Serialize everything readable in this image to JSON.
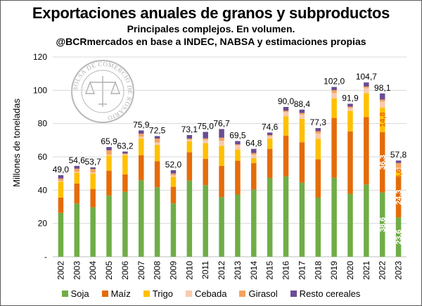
{
  "chart_data": {
    "type": "bar",
    "stacked": true,
    "title": "Exportaciones anuales de granos y subproductos",
    "subtitle": "Principales complejos. En volumen.",
    "subtitle2": "@BCRmercados en base a INDEC, NABSA y estimaciones propias",
    "ylabel": "Millones de toneladas",
    "ylim": [
      0,
      120
    ],
    "yticks": [
      "-",
      "20",
      "40",
      "60",
      "80",
      "100",
      "120"
    ],
    "grid": true,
    "legend_position": "bottom",
    "categories": [
      "2002",
      "2003",
      "2004",
      "2005",
      "2006",
      "2007",
      "2008",
      "2009",
      "2010",
      "2011",
      "2012",
      "2013",
      "2014",
      "2015",
      "2016",
      "2017",
      "2018",
      "2019",
      "2020",
      "2021",
      "2022",
      "2023"
    ],
    "totals": [
      "49,0",
      "54,6",
      "53,7",
      "65,9",
      "63,2",
      "75,9",
      "72,5",
      "52,0",
      "73,1",
      "75,0",
      "76,7",
      "69,5",
      "64,8",
      "74,6",
      "90,0",
      "88,4",
      "77,3",
      "102,0",
      "91,9",
      "104,7",
      "98,1",
      "57,8"
    ],
    "total_values": [
      49.0,
      54.6,
      53.7,
      65.9,
      63.2,
      75.9,
      72.5,
      52.0,
      73.1,
      75.0,
      76.7,
      69.5,
      64.8,
      74.6,
      90.0,
      88.4,
      77.3,
      102.0,
      91.9,
      104.7,
      98.1,
      57.8
    ],
    "series": [
      {
        "name": "Soja",
        "color": "#70ad47",
        "values": [
          26.3,
          32.0,
          29.7,
          36.7,
          39.0,
          46.0,
          41.7,
          32.0,
          45.8,
          43.0,
          35.8,
          37.4,
          40.3,
          47.3,
          48.2,
          44.5,
          35.5,
          47.4,
          37.8,
          43.4,
          38.6,
          23.6
        ]
      },
      {
        "name": "Maíz",
        "color": "#e46c0a",
        "values": [
          9.2,
          12.0,
          11.0,
          15.0,
          10.5,
          15.0,
          15.7,
          10.0,
          17.0,
          15.8,
          18.8,
          20.3,
          16.0,
          17.5,
          24.6,
          24.3,
          23.0,
          36.0,
          37.5,
          40.5,
          36.3,
          24.3
        ]
      },
      {
        "name": "Trigo",
        "color": "#ffc000",
        "values": [
          9.6,
          6.5,
          9.3,
          9.0,
          11.5,
          10.0,
          9.8,
          6.0,
          6.6,
          9.4,
          12.0,
          6.7,
          3.0,
          6.2,
          11.5,
          14.0,
          12.3,
          11.8,
          12.3,
          14.3,
          14.8,
          3.6
        ]
      },
      {
        "name": "Cebada",
        "color": "#f8cbad",
        "values": [
          0.5,
          0.6,
          0.6,
          0.6,
          0.5,
          1.1,
          1.4,
          0.9,
          0.9,
          2.0,
          3.0,
          2.6,
          2.0,
          1.4,
          2.6,
          2.6,
          3.2,
          3.2,
          1.8,
          3.1,
          3.5,
          2.0
        ]
      },
      {
        "name": "Girasol",
        "color": "#f4a460",
        "values": [
          1.4,
          1.8,
          2.1,
          2.7,
          0.5,
          1.8,
          2.4,
          1.1,
          0.7,
          0.9,
          1.9,
          0.5,
          1.0,
          0.7,
          0.8,
          1.0,
          1.4,
          1.7,
          0.8,
          0.9,
          1.2,
          2.8
        ]
      },
      {
        "name": "Resto cereales",
        "color": "#6a4c93",
        "values": [
          2.0,
          1.7,
          1.0,
          1.9,
          1.2,
          2.0,
          1.5,
          2.0,
          2.1,
          3.9,
          5.2,
          2.0,
          2.5,
          1.5,
          2.3,
          2.0,
          1.9,
          1.9,
          1.7,
          2.5,
          3.7,
          1.5
        ]
      }
    ],
    "inner_labels": [
      {
        "category": "2022",
        "series": "Trigo",
        "text": "14,8",
        "color": "#e46c0a"
      },
      {
        "category": "2022",
        "series": "Maíz",
        "text": "36,3",
        "color": "#ffffff"
      },
      {
        "category": "2022",
        "series": "Soja",
        "text": "38,6",
        "color": "#ffffff"
      },
      {
        "category": "2023",
        "series": "Trigo",
        "text": "3,6",
        "color": "#e46c0a"
      },
      {
        "category": "2023",
        "series": "Maíz",
        "text": "24,3",
        "color": "#ffffff"
      },
      {
        "category": "2023",
        "series": "Soja",
        "text": "23,6",
        "color": "#ffffff"
      }
    ]
  },
  "watermark": {
    "text_top": "BOLSA DE COMERCIO DE ROSARIO"
  }
}
